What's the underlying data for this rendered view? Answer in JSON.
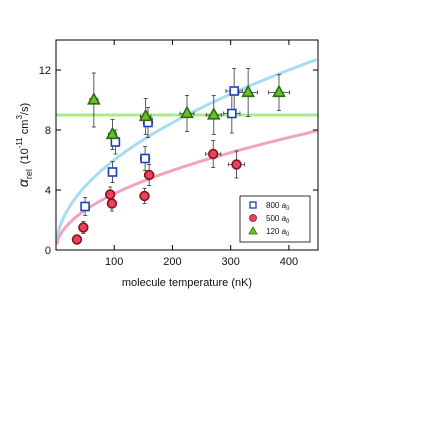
{
  "chart_data": {
    "type": "scatter",
    "xlabel": "molecule temperature (nK)",
    "ylabel": {
      "symbol": "α",
      "subscript": "rel",
      "unit_open": "(10",
      "unit_exp": "-11",
      "unit_mid": " cm",
      "unit_exp2": "3",
      "unit_close": "/s)"
    },
    "xlim": [
      0,
      450
    ],
    "ylim": [
      0,
      14
    ],
    "xticks": [
      100,
      200,
      300,
      400
    ],
    "yticks": [
      0,
      4,
      8,
      12
    ],
    "xtick_labels": [
      "100",
      "200",
      "300",
      "400"
    ],
    "ytick_labels": [
      "0",
      "4",
      "8",
      "12"
    ],
    "grid": false,
    "legend_position": "bottom-right",
    "series": [
      {
        "name": "800",
        "name_unit": "a",
        "name_sub": "0",
        "marker": "square",
        "color": "#1a3fbf",
        "fill": "#ffffff",
        "points": [
          {
            "x": 50,
            "y": 2.9,
            "xerr": 7,
            "yerr": 0.6
          },
          {
            "x": 97,
            "y": 5.2,
            "xerr": 7,
            "yerr": 0.7
          },
          {
            "x": 102,
            "y": 7.2,
            "xerr": 7,
            "yerr": 0.8
          },
          {
            "x": 153,
            "y": 6.1,
            "xerr": 8,
            "yerr": 0.8
          },
          {
            "x": 158,
            "y": 8.5,
            "xerr": 8,
            "yerr": 1.0
          },
          {
            "x": 302,
            "y": 9.1,
            "xerr": 14,
            "yerr": 1.3
          },
          {
            "x": 306,
            "y": 10.6,
            "xerr": 14,
            "yerr": 1.5
          }
        ]
      },
      {
        "name": "500",
        "name_unit": "a",
        "name_sub": "0",
        "marker": "circle",
        "color": "#8a0f1f",
        "fill": "#e8455a",
        "points": [
          {
            "x": 36,
            "y": 0.7,
            "xerr": 6,
            "yerr": 0.3
          },
          {
            "x": 47,
            "y": 1.5,
            "xerr": 6,
            "yerr": 0.4
          },
          {
            "x": 93,
            "y": 3.7,
            "xerr": 7,
            "yerr": 0.5
          },
          {
            "x": 96,
            "y": 3.1,
            "xerr": 7,
            "yerr": 0.5
          },
          {
            "x": 152,
            "y": 3.6,
            "xerr": 8,
            "yerr": 0.5
          },
          {
            "x": 160,
            "y": 5.0,
            "xerr": 8,
            "yerr": 0.7
          },
          {
            "x": 270,
            "y": 6.4,
            "xerr": 13,
            "yerr": 0.9
          },
          {
            "x": 310,
            "y": 5.7,
            "xerr": 14,
            "yerr": 0.9
          }
        ]
      },
      {
        "name": "120",
        "name_unit": "a",
        "name_sub": "0",
        "marker": "triangle",
        "color": "#2b6e12",
        "fill": "#6cbf2a",
        "points": [
          {
            "x": 65,
            "y": 10.0,
            "xerr": 7,
            "yerr": 1.8
          },
          {
            "x": 97,
            "y": 7.7,
            "xerr": 7,
            "yerr": 1.0
          },
          {
            "x": 154,
            "y": 8.9,
            "xerr": 9,
            "yerr": 1.2
          },
          {
            "x": 225,
            "y": 9.1,
            "xerr": 12,
            "yerr": 1.2
          },
          {
            "x": 271,
            "y": 9.0,
            "xerr": 13,
            "yerr": 1.3
          },
          {
            "x": 330,
            "y": 10.5,
            "xerr": 16,
            "yerr": 1.6
          },
          {
            "x": 383,
            "y": 10.5,
            "xerr": 18,
            "yerr": 1.2
          }
        ]
      }
    ],
    "fits": [
      {
        "series": "800",
        "kind": "power",
        "coef": 0.6,
        "exponent": 0.5,
        "color": "#a8dcf2"
      },
      {
        "series": "500",
        "kind": "power",
        "coef": 0.375,
        "exponent": 0.5,
        "color": "#f2a3c3"
      },
      {
        "series": "120",
        "kind": "constant",
        "value": 9.0,
        "color": "#a8ec8a"
      }
    ]
  }
}
